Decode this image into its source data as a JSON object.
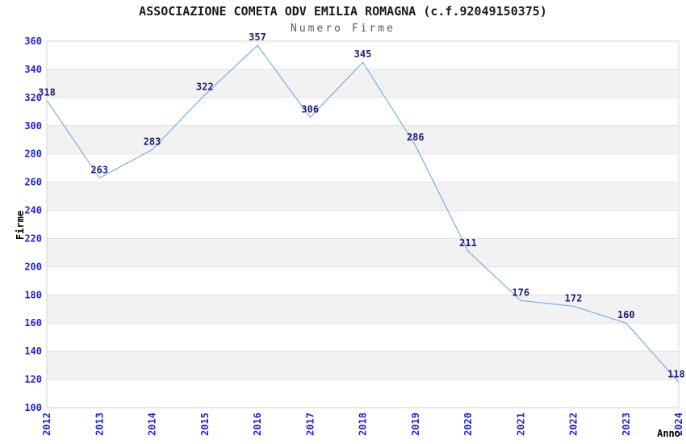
{
  "chart_data": {
    "type": "line",
    "title": "ASSOCIAZIONE COMETA ODV EMILIA ROMAGNA (c.f.92049150375)",
    "subtitle": "Numero Firme",
    "xlabel": "Anno",
    "ylabel": "Firme",
    "categories": [
      "2012",
      "2013",
      "2014",
      "2015",
      "2016",
      "2017",
      "2018",
      "2019",
      "2020",
      "2021",
      "2022",
      "2023",
      "2024"
    ],
    "values": [
      318,
      263,
      283,
      322,
      357,
      306,
      345,
      286,
      211,
      176,
      172,
      160,
      118
    ],
    "ylim": [
      100,
      360
    ],
    "ytick_step": 20,
    "grid": "horizontal-only",
    "legend": "none",
    "banded_background": true,
    "colors": {
      "line": "#7dade0",
      "tick_label": "#2424cc",
      "point_label": "#1e1e78",
      "band": "#f2f2f2",
      "grid": "#e1e1e1",
      "border": "#d6d6d6",
      "title": "#1a1a1a",
      "subtitle": "#5a5a5a",
      "axis_label": "#000000"
    }
  }
}
